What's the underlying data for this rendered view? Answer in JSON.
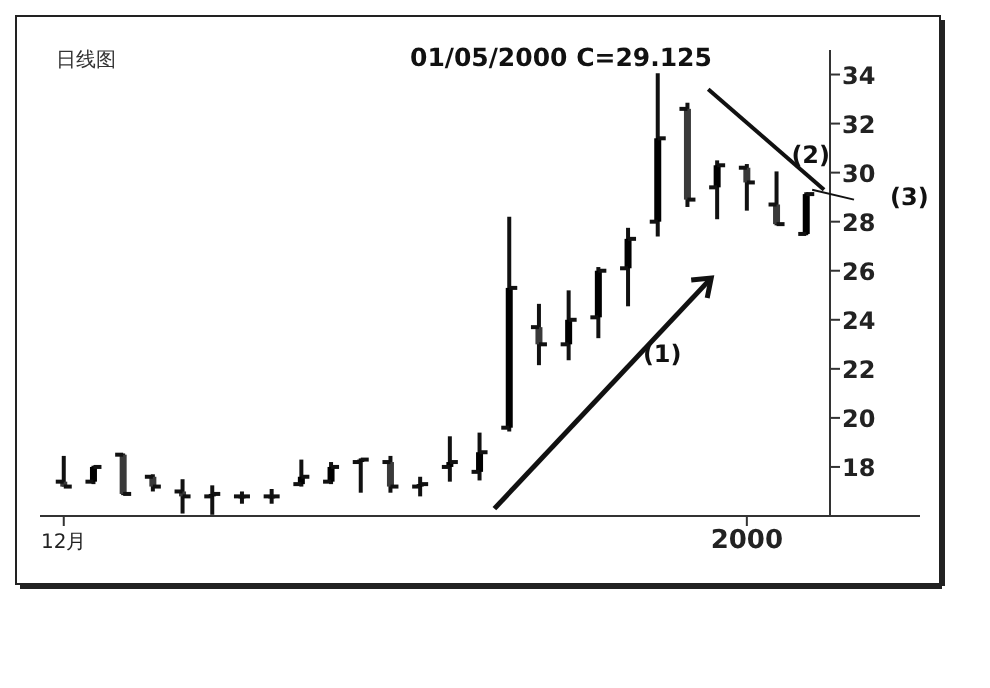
{
  "chart_data": {
    "type": "candlestick",
    "title": "日线图",
    "subtitle": "01/05/2000 C=29.125",
    "categories": [
      "12月",
      null,
      null,
      null,
      null,
      null,
      null,
      null,
      null,
      null,
      null,
      null,
      null,
      null,
      null,
      null,
      null,
      null,
      null,
      null,
      null,
      null,
      null,
      "2000",
      null,
      null
    ],
    "ohlc": [
      [
        17.4,
        18.45,
        17.2,
        17.2
      ],
      [
        17.4,
        18.05,
        17.3,
        18.0
      ],
      [
        18.5,
        18.55,
        16.85,
        16.9
      ],
      [
        17.6,
        17.7,
        17.0,
        17.2
      ],
      [
        17.0,
        17.5,
        16.1,
        16.8
      ],
      [
        16.8,
        17.25,
        16.05,
        16.9
      ],
      [
        16.8,
        17.0,
        16.5,
        16.8
      ],
      [
        16.8,
        17.1,
        16.5,
        16.8
      ],
      [
        17.3,
        18.3,
        17.2,
        17.6
      ],
      [
        17.4,
        18.2,
        17.3,
        18.0
      ],
      [
        18.2,
        18.35,
        16.95,
        18.3
      ],
      [
        18.2,
        18.45,
        16.95,
        17.2
      ],
      [
        17.2,
        17.6,
        16.8,
        17.3
      ],
      [
        18.0,
        19.25,
        17.4,
        18.2
      ],
      [
        17.8,
        19.4,
        17.45,
        18.6
      ],
      [
        19.6,
        28.2,
        19.45,
        25.3
      ],
      [
        23.7,
        24.65,
        22.15,
        23.0
      ],
      [
        23.0,
        25.2,
        22.35,
        24.0
      ],
      [
        24.1,
        26.15,
        23.25,
        26.0
      ],
      [
        26.1,
        27.75,
        24.55,
        27.3
      ],
      [
        28.0,
        34.05,
        27.4,
        31.4
      ],
      [
        32.6,
        32.85,
        28.6,
        28.9
      ],
      [
        29.4,
        30.5,
        28.1,
        30.3
      ],
      [
        30.2,
        30.35,
        28.45,
        29.6
      ],
      [
        28.7,
        30.05,
        27.85,
        27.9
      ],
      [
        27.5,
        29.2,
        27.45,
        29.125
      ]
    ],
    "ylim": [
      16,
      35
    ],
    "yticks": [
      18,
      20,
      22,
      24,
      26,
      28,
      30,
      32,
      34
    ],
    "annotations": [
      "(1)",
      "(2)",
      "(3)"
    ],
    "grid": false
  }
}
